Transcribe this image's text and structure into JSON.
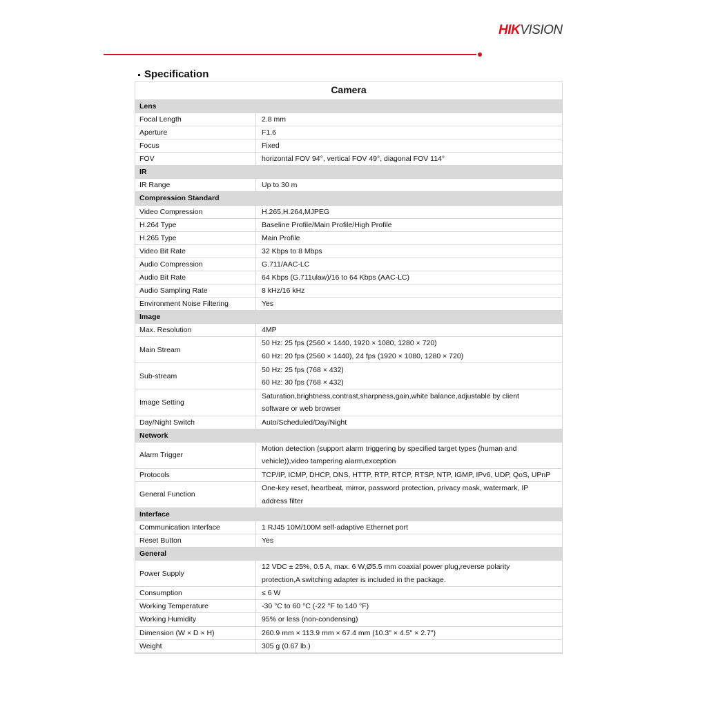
{
  "brand": {
    "logo_text_red": "HIK",
    "logo_text_dark": "VISION",
    "accent_color": "#d7121f"
  },
  "heading": "Specification",
  "table": {
    "title": "Camera",
    "rows": [
      {
        "section": "Lens"
      },
      {
        "label": "Focal Length",
        "value": [
          "2.8 mm"
        ]
      },
      {
        "label": "Aperture",
        "value": [
          "F1.6"
        ]
      },
      {
        "label": "Focus",
        "value": [
          "Fixed"
        ]
      },
      {
        "label": "FOV",
        "value": [
          "horizontal FOV 94°, vertical FOV 49°, diagonal FOV 114°"
        ]
      },
      {
        "section": "IR"
      },
      {
        "label": "IR Range",
        "value": [
          "Up to 30 m"
        ]
      },
      {
        "section": "Compression Standard"
      },
      {
        "label": "Video Compression",
        "value": [
          "H.265,H.264,MJPEG"
        ]
      },
      {
        "label": "H.264 Type",
        "value": [
          "Baseline Profile/Main Profile/High Profile"
        ]
      },
      {
        "label": "H.265 Type",
        "value": [
          "Main Profile"
        ]
      },
      {
        "label": "Video Bit Rate",
        "value": [
          "32 Kbps to 8 Mbps"
        ]
      },
      {
        "label": "Audio Compression",
        "value": [
          "G.711/AAC-LC"
        ]
      },
      {
        "label": "Audio Bit Rate",
        "value": [
          "64 Kbps (G.711ulaw)/16 to 64 Kbps (AAC-LC)"
        ]
      },
      {
        "label": "Audio Sampling Rate",
        "value": [
          "8 kHz/16 kHz"
        ]
      },
      {
        "label": "Environment Noise Filtering",
        "value": [
          "Yes"
        ]
      },
      {
        "section": "Image"
      },
      {
        "label": "Max. Resolution",
        "value": [
          "4MP"
        ]
      },
      {
        "label": "Main Stream",
        "value": [
          "50 Hz: 25 fps (2560 × 1440, 1920 × 1080, 1280 × 720)",
          "60 Hz: 20 fps (2560 × 1440), 24 fps (1920 × 1080, 1280 × 720)"
        ]
      },
      {
        "label": "Sub-stream",
        "value": [
          "50 Hz: 25 fps (768 × 432)",
          "60 Hz: 30 fps (768 × 432)"
        ]
      },
      {
        "label": "Image Setting",
        "value": [
          "Saturation,brightness,contrast,sharpness,gain,white balance,adjustable by client",
          "software or web browser"
        ]
      },
      {
        "label": "Day/Night Switch",
        "value": [
          "Auto/Scheduled/Day/Night"
        ]
      },
      {
        "section": "Network"
      },
      {
        "label": "Alarm Trigger",
        "value": [
          "Motion detection (support alarm triggering by specified target types (human and",
          "vehicle)),video tampering alarm,exception"
        ]
      },
      {
        "label": "Protocols",
        "value": [
          "TCP/IP, ICMP, DHCP, DNS, HTTP, RTP, RTCP, RTSP, NTP, IGMP, IPv6, UDP, QoS, UPnP"
        ]
      },
      {
        "label": "General Function",
        "value": [
          "One-key reset, heartbeat, mirror, password protection, privacy mask, watermark, IP",
          "address filter"
        ]
      },
      {
        "section": "Interface"
      },
      {
        "label": "Communication Interface",
        "value": [
          "1 RJ45 10M/100M self-adaptive Ethernet port"
        ]
      },
      {
        "label": "Reset Button",
        "value": [
          "Yes"
        ]
      },
      {
        "section": "General"
      },
      {
        "label": "Power Supply",
        "value": [
          "12 VDC ± 25%, 0.5 A, max. 6 W,Ø5.5 mm coaxial power plug,reverse polarity",
          "protection,A switching adapter is included in the package."
        ]
      },
      {
        "label": "Consumption",
        "value": [
          "≤ 6 W"
        ]
      },
      {
        "label": "Working Temperature",
        "value": [
          "-30 °C to 60 °C (-22 °F to 140 °F)"
        ]
      },
      {
        "label": "Working Humidity",
        "value": [
          "95% or less (non-condensing)"
        ]
      },
      {
        "label": "Dimension (W × D × H)",
        "value": [
          "260.9 mm × 113.9 mm × 67.4 mm (10.3\" × 4.5\" × 2.7\")"
        ]
      },
      {
        "label": "Weight",
        "value": [
          "305 g (0.67 lb.)"
        ]
      }
    ]
  }
}
